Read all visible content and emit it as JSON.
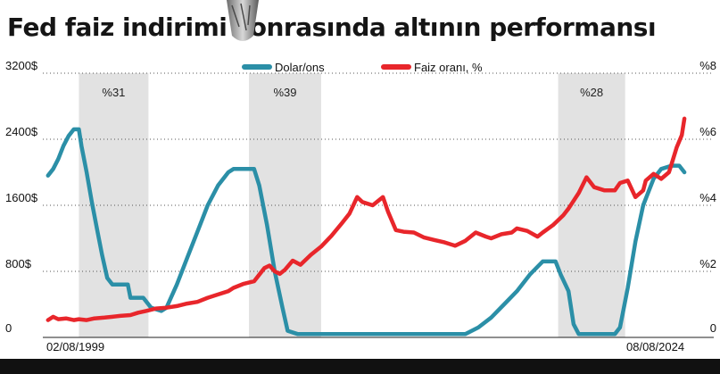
{
  "title": "Fed faiz indirimi sonrasında altının performansı",
  "chart_data": {
    "type": "line",
    "title": "Fed faiz indirimi sonrasında altının performansı",
    "x_start_label": "02/08/1999",
    "x_end_label": "08/08/2024",
    "x_range": [
      1999.6,
      2024.6
    ],
    "left_axis": {
      "ticks": [
        "0",
        "800$",
        "1600$",
        "2400$",
        "3200$"
      ],
      "values": [
        0,
        800,
        1600,
        2400,
        3200
      ],
      "range": [
        0,
        3200
      ]
    },
    "right_axis": {
      "ticks": [
        "0",
        "%2",
        "%4",
        "%6",
        "%8"
      ],
      "values": [
        0,
        2,
        4,
        6,
        8
      ],
      "range": [
        0,
        8
      ]
    },
    "legend_position": "top-center",
    "bands": [
      {
        "label": "%31",
        "start": 2001.0,
        "end": 2003.7
      },
      {
        "label": "%39",
        "start": 2007.6,
        "end": 2010.4
      },
      {
        "label": "%28",
        "start": 2019.6,
        "end": 2022.2
      }
    ],
    "series": [
      {
        "name": "Dolar/ons",
        "axis": "right",
        "color": "#2b8fa7",
        "points": [
          [
            1999.8,
            4.9
          ],
          [
            2000.0,
            5.1
          ],
          [
            2000.2,
            5.4
          ],
          [
            2000.4,
            5.8
          ],
          [
            2000.6,
            6.1
          ],
          [
            2000.8,
            6.3
          ],
          [
            2001.0,
            6.3
          ],
          [
            2001.1,
            5.8
          ],
          [
            2001.3,
            5.0
          ],
          [
            2001.5,
            4.1
          ],
          [
            2001.7,
            3.3
          ],
          [
            2001.9,
            2.5
          ],
          [
            2002.1,
            1.8
          ],
          [
            2002.3,
            1.6
          ],
          [
            2002.6,
            1.6
          ],
          [
            2002.9,
            1.6
          ],
          [
            2003.0,
            1.2
          ],
          [
            2003.5,
            1.2
          ],
          [
            2003.8,
            0.9
          ],
          [
            2004.2,
            0.8
          ],
          [
            2004.4,
            0.9
          ],
          [
            2004.8,
            1.6
          ],
          [
            2005.2,
            2.4
          ],
          [
            2005.6,
            3.2
          ],
          [
            2006.0,
            4.0
          ],
          [
            2006.4,
            4.6
          ],
          [
            2006.8,
            5.0
          ],
          [
            2007.0,
            5.1
          ],
          [
            2007.5,
            5.1
          ],
          [
            2007.8,
            5.1
          ],
          [
            2008.0,
            4.6
          ],
          [
            2008.3,
            3.4
          ],
          [
            2008.6,
            2.0
          ],
          [
            2008.9,
            0.9
          ],
          [
            2009.1,
            0.2
          ],
          [
            2009.5,
            0.1
          ],
          [
            2010.0,
            0.1
          ],
          [
            2011.0,
            0.1
          ],
          [
            2012.0,
            0.1
          ],
          [
            2013.0,
            0.1
          ],
          [
            2015.0,
            0.1
          ],
          [
            2016.0,
            0.1
          ],
          [
            2016.5,
            0.3
          ],
          [
            2017.0,
            0.6
          ],
          [
            2017.5,
            1.0
          ],
          [
            2018.0,
            1.4
          ],
          [
            2018.5,
            1.9
          ],
          [
            2019.0,
            2.3
          ],
          [
            2019.5,
            2.3
          ],
          [
            2019.7,
            1.9
          ],
          [
            2020.0,
            1.4
          ],
          [
            2020.2,
            0.4
          ],
          [
            2020.4,
            0.1
          ],
          [
            2021.0,
            0.1
          ],
          [
            2021.8,
            0.1
          ],
          [
            2022.0,
            0.3
          ],
          [
            2022.3,
            1.5
          ],
          [
            2022.6,
            2.9
          ],
          [
            2022.9,
            4.0
          ],
          [
            2023.3,
            4.8
          ],
          [
            2023.6,
            5.1
          ],
          [
            2024.0,
            5.2
          ],
          [
            2024.3,
            5.2
          ],
          [
            2024.5,
            5.0
          ]
        ]
      },
      {
        "name": "Faiz oranı, %",
        "axis": "left",
        "color": "#e8262b",
        "points": [
          [
            1999.8,
            210
          ],
          [
            2000.0,
            250
          ],
          [
            2000.2,
            220
          ],
          [
            2000.5,
            230
          ],
          [
            2000.8,
            210
          ],
          [
            2001.0,
            220
          ],
          [
            2001.3,
            210
          ],
          [
            2001.6,
            230
          ],
          [
            2002.0,
            240
          ],
          [
            2002.3,
            250
          ],
          [
            2002.6,
            260
          ],
          [
            2003.0,
            270
          ],
          [
            2003.3,
            300
          ],
          [
            2003.6,
            320
          ],
          [
            2004.0,
            350
          ],
          [
            2004.4,
            360
          ],
          [
            2004.8,
            380
          ],
          [
            2005.2,
            410
          ],
          [
            2005.6,
            430
          ],
          [
            2006.0,
            480
          ],
          [
            2006.4,
            520
          ],
          [
            2006.8,
            560
          ],
          [
            2007.0,
            600
          ],
          [
            2007.4,
            650
          ],
          [
            2007.8,
            680
          ],
          [
            2008.0,
            760
          ],
          [
            2008.2,
            840
          ],
          [
            2008.4,
            870
          ],
          [
            2008.6,
            800
          ],
          [
            2008.8,
            770
          ],
          [
            2009.0,
            820
          ],
          [
            2009.3,
            930
          ],
          [
            2009.6,
            880
          ],
          [
            2010.0,
            1000
          ],
          [
            2010.4,
            1100
          ],
          [
            2010.8,
            1230
          ],
          [
            2011.2,
            1380
          ],
          [
            2011.5,
            1500
          ],
          [
            2011.8,
            1700
          ],
          [
            2012.0,
            1640
          ],
          [
            2012.4,
            1600
          ],
          [
            2012.8,
            1700
          ],
          [
            2013.0,
            1520
          ],
          [
            2013.3,
            1300
          ],
          [
            2013.6,
            1280
          ],
          [
            2014.0,
            1270
          ],
          [
            2014.4,
            1210
          ],
          [
            2014.8,
            1180
          ],
          [
            2015.2,
            1150
          ],
          [
            2015.6,
            1110
          ],
          [
            2016.0,
            1170
          ],
          [
            2016.4,
            1270
          ],
          [
            2016.8,
            1220
          ],
          [
            2017.0,
            1200
          ],
          [
            2017.4,
            1250
          ],
          [
            2017.8,
            1270
          ],
          [
            2018.0,
            1320
          ],
          [
            2018.4,
            1290
          ],
          [
            2018.8,
            1220
          ],
          [
            2019.0,
            1270
          ],
          [
            2019.4,
            1360
          ],
          [
            2019.8,
            1480
          ],
          [
            2020.0,
            1560
          ],
          [
            2020.4,
            1750
          ],
          [
            2020.7,
            1940
          ],
          [
            2021.0,
            1820
          ],
          [
            2021.4,
            1780
          ],
          [
            2021.8,
            1780
          ],
          [
            2022.0,
            1870
          ],
          [
            2022.3,
            1900
          ],
          [
            2022.6,
            1700
          ],
          [
            2022.9,
            1780
          ],
          [
            2023.0,
            1900
          ],
          [
            2023.3,
            1980
          ],
          [
            2023.6,
            1920
          ],
          [
            2023.9,
            2000
          ],
          [
            2024.0,
            2100
          ],
          [
            2024.2,
            2300
          ],
          [
            2024.4,
            2450
          ],
          [
            2024.5,
            2650
          ]
        ]
      }
    ]
  }
}
